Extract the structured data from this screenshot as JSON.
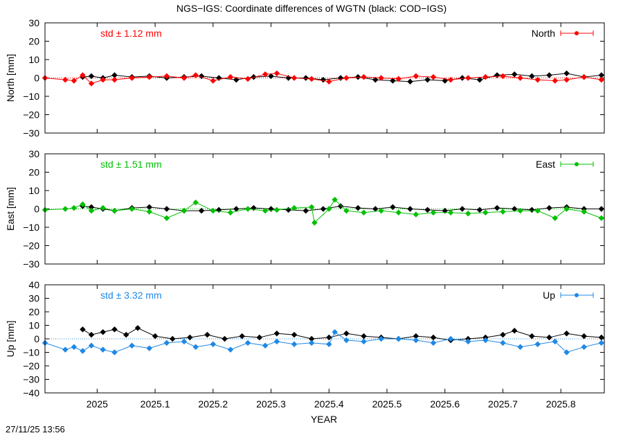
{
  "title": "NGS−IGS: Coordinate differences of WGTN (black: COD−IGS)",
  "timestamp": "27/11/25 13:56",
  "chart_data": {
    "type": "scatter",
    "title": "NGS−IGS: Coordinate differences of WGTN (black: COD−IGS)",
    "xlabel": "YEAR",
    "xlim": [
      2024.91,
      2025.875
    ],
    "xticks": [
      2025,
      2025.1,
      2025.2,
      2025.3,
      2025.4,
      2025.5,
      2025.6,
      2025.7,
      2025.8
    ],
    "xtick_labels": [
      "2025",
      "2025.1",
      "2025.2",
      "2025.3",
      "2025.4",
      "2025.5",
      "2025.6",
      "2025.7",
      "2025.8"
    ],
    "grid": false,
    "legend_position": "top-right",
    "panels": [
      {
        "key": "north",
        "ylabel": "North [mm]",
        "ylim": [
          -30,
          30
        ],
        "yticks": [
          -30,
          -20,
          -10,
          0,
          10,
          20,
          30
        ],
        "ytick_labels": [
          "−30",
          "−20",
          "−10",
          "0",
          "10",
          "20",
          "30"
        ],
        "std_label": "std ± 1.12 mm",
        "legend_label": "North",
        "color": "#ff0000",
        "reference_color": "#000000",
        "series": [
          {
            "name": "North",
            "color": "#ff0000",
            "x": [
              2024.91,
              2024.945,
              2024.96,
              2024.975,
              2024.99,
              2025.01,
              2025.03,
              2025.06,
              2025.09,
              2025.12,
              2025.15,
              2025.17,
              2025.2,
              2025.23,
              2025.26,
              2025.29,
              2025.31,
              2025.34,
              2025.37,
              2025.4,
              2025.43,
              2025.46,
              2025.49,
              2025.52,
              2025.55,
              2025.58,
              2025.61,
              2025.64,
              2025.67,
              2025.7,
              2025.73,
              2025.76,
              2025.79,
              2025.81,
              2025.84,
              2025.87
            ],
            "y": [
              0,
              -1,
              -1.5,
              1.5,
              -3,
              -1,
              -1,
              0,
              0.5,
              1,
              0,
              1.5,
              -1.5,
              0.5,
              -0.5,
              2,
              2.5,
              0,
              -0.5,
              -2,
              0,
              0.5,
              0,
              -0.5,
              1,
              0.5,
              -1,
              0,
              0.5,
              1,
              0,
              -1,
              -1.5,
              -1,
              0.5,
              -1
            ]
          },
          {
            "name": "",
            "color": "#000000",
            "x": [
              2024.975,
              2024.99,
              2025.01,
              2025.03,
              2025.06,
              2025.09,
              2025.12,
              2025.15,
              2025.18,
              2025.21,
              2025.24,
              2025.27,
              2025.3,
              2025.33,
              2025.36,
              2025.39,
              2025.42,
              2025.45,
              2025.48,
              2025.51,
              2025.54,
              2025.57,
              2025.6,
              2025.63,
              2025.66,
              2025.69,
              2025.72,
              2025.75,
              2025.78,
              2025.81,
              2025.84,
              2025.87
            ],
            "y": [
              0.5,
              1,
              0,
              1.5,
              0.5,
              1,
              0,
              0.5,
              1,
              0,
              -1,
              0.5,
              1,
              0,
              0,
              -1,
              0,
              0.5,
              -1,
              -1.5,
              -2,
              -1,
              -1.5,
              0,
              -1,
              1.5,
              2,
              1,
              1.5,
              2.5,
              0.5,
              1.5
            ]
          }
        ]
      },
      {
        "key": "east",
        "ylabel": "East [mm]",
        "ylim": [
          -30,
          30
        ],
        "yticks": [
          -30,
          -20,
          -10,
          0,
          10,
          20,
          30
        ],
        "ytick_labels": [
          "−30",
          "−20",
          "−10",
          "0",
          "10",
          "20",
          "30"
        ],
        "std_label": "std ± 1.51 mm",
        "legend_label": "East",
        "color": "#00c000",
        "reference_color": "#000000",
        "series": [
          {
            "name": "East",
            "color": "#00c000",
            "x": [
              2024.91,
              2024.945,
              2024.96,
              2024.975,
              2024.99,
              2025.01,
              2025.03,
              2025.06,
              2025.09,
              2025.12,
              2025.15,
              2025.17,
              2025.2,
              2025.23,
              2025.26,
              2025.29,
              2025.31,
              2025.34,
              2025.37,
              2025.375,
              2025.4,
              2025.41,
              2025.43,
              2025.46,
              2025.49,
              2025.52,
              2025.55,
              2025.58,
              2025.61,
              2025.64,
              2025.67,
              2025.7,
              2025.73,
              2025.76,
              2025.79,
              2025.81,
              2025.84,
              2025.87
            ],
            "y": [
              -0.5,
              0,
              0.5,
              2.5,
              -1,
              0.5,
              -1,
              0,
              -1.5,
              -5,
              -1,
              3.5,
              -1,
              -2,
              0,
              -1,
              -0.5,
              0.5,
              1,
              -7.5,
              0,
              5,
              -1,
              -2,
              -1,
              -2,
              -3,
              -2,
              -2,
              -2.5,
              -2,
              -1.5,
              -1,
              -1,
              -5,
              0,
              -1.5,
              -5
            ]
          },
          {
            "name": "",
            "color": "#000000",
            "x": [
              2024.975,
              2024.99,
              2025.01,
              2025.03,
              2025.06,
              2025.09,
              2025.12,
              2025.15,
              2025.18,
              2025.21,
              2025.24,
              2025.27,
              2025.3,
              2025.33,
              2025.36,
              2025.39,
              2025.42,
              2025.45,
              2025.48,
              2025.51,
              2025.54,
              2025.57,
              2025.6,
              2025.63,
              2025.66,
              2025.69,
              2025.72,
              2025.75,
              2025.78,
              2025.81,
              2025.84,
              2025.87
            ],
            "y": [
              1.5,
              1,
              0,
              -1,
              0.5,
              1,
              0,
              -1,
              -1,
              -0.5,
              0,
              0.5,
              0,
              -0.5,
              -1,
              0,
              1.5,
              0.5,
              0,
              1,
              0,
              -0.5,
              -1,
              0,
              -0.5,
              0.5,
              0,
              -0.5,
              0.5,
              1,
              0,
              0
            ]
          }
        ]
      },
      {
        "key": "up",
        "ylabel": "Up [mm]",
        "ylim": [
          -40,
          40
        ],
        "yticks": [
          -40,
          -30,
          -20,
          -10,
          0,
          10,
          20,
          30,
          40
        ],
        "ytick_labels": [
          "−40",
          "−30",
          "−20",
          "−10",
          "0",
          "10",
          "20",
          "30",
          "40"
        ],
        "std_label": "std ± 3.32 mm",
        "legend_label": "Up",
        "color": "#1e88e5",
        "reference_color": "#000000",
        "series": [
          {
            "name": "Up",
            "color": "#1e88e5",
            "x": [
              2024.91,
              2024.945,
              2024.96,
              2024.975,
              2024.99,
              2025.01,
              2025.03,
              2025.06,
              2025.09,
              2025.12,
              2025.15,
              2025.17,
              2025.2,
              2025.23,
              2025.26,
              2025.29,
              2025.31,
              2025.34,
              2025.37,
              2025.4,
              2025.41,
              2025.43,
              2025.46,
              2025.49,
              2025.52,
              2025.55,
              2025.58,
              2025.61,
              2025.64,
              2025.67,
              2025.7,
              2025.73,
              2025.76,
              2025.79,
              2025.81,
              2025.84,
              2025.87
            ],
            "y": [
              -3,
              -8,
              -6,
              -9,
              -5,
              -8,
              -10,
              -5,
              -7,
              -3,
              -2,
              -6,
              -4,
              -8,
              -3,
              -5,
              -2,
              -4,
              -3,
              -4,
              5,
              -1,
              -2,
              0,
              0,
              -1,
              -3,
              0,
              -2,
              -1,
              -3,
              -6,
              -4,
              -2,
              -10,
              -6,
              -3
            ]
          },
          {
            "name": "",
            "color": "#000000",
            "x": [
              2024.975,
              2024.99,
              2025.01,
              2025.03,
              2025.05,
              2025.07,
              2025.1,
              2025.13,
              2025.16,
              2025.19,
              2025.22,
              2025.25,
              2025.28,
              2025.31,
              2025.34,
              2025.37,
              2025.4,
              2025.43,
              2025.46,
              2025.49,
              2025.52,
              2025.55,
              2025.58,
              2025.61,
              2025.64,
              2025.67,
              2025.7,
              2025.72,
              2025.75,
              2025.78,
              2025.81,
              2025.84,
              2025.87
            ],
            "y": [
              7,
              3,
              5,
              7,
              3,
              8,
              2,
              0,
              1,
              3,
              0,
              2,
              1,
              4,
              3,
              0,
              1,
              4,
              2,
              1,
              0,
              2,
              1,
              -1,
              0,
              1,
              3,
              6,
              2,
              1,
              4,
              2,
              1
            ]
          }
        ]
      }
    ]
  }
}
